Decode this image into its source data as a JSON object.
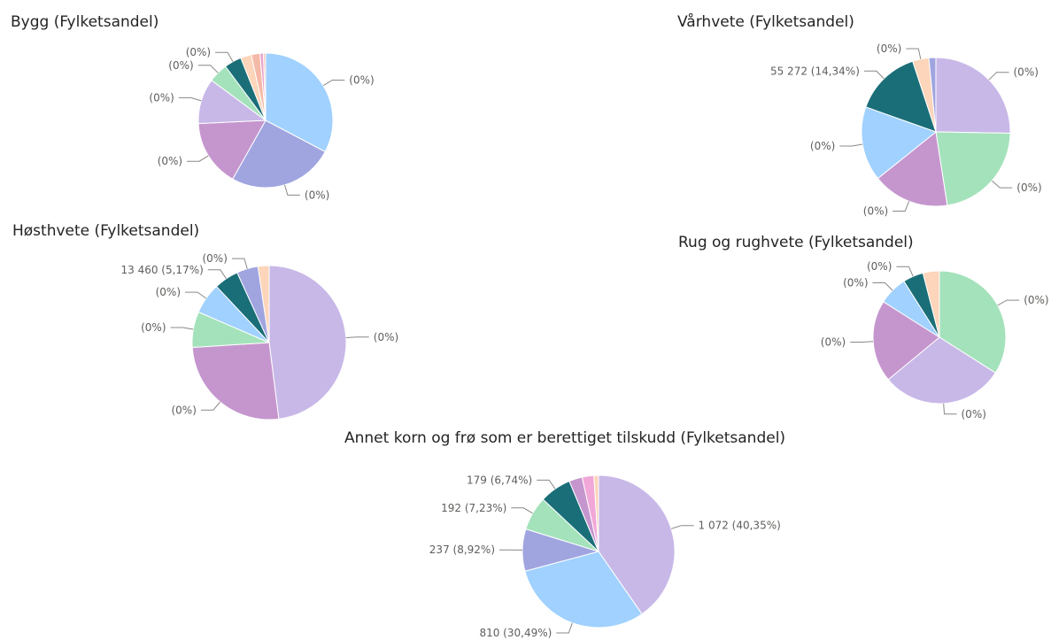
{
  "charts": [
    {
      "id": "bygg",
      "title": "Bygg (Fylketsandel)",
      "chart_data": {
        "type": "pie",
        "slices": [
          {
            "value": 31.5,
            "color": "#a0d1ff",
            "label": "(0%)"
          },
          {
            "value": 24.5,
            "color": "#a0a5e0",
            "label": "(0%)"
          },
          {
            "value": 15.5,
            "color": "#c596ce",
            "label": "(0%)"
          },
          {
            "value": 10.5,
            "color": "#c8b8e8",
            "label": "(0%)"
          },
          {
            "value": 4.5,
            "color": "#a4e2bb",
            "label": "(0%)"
          },
          {
            "value": 4.0,
            "color": "#1a6e78",
            "label": "(0%)"
          },
          {
            "value": 2.5,
            "color": "#fcd5ba",
            "label": ""
          },
          {
            "value": 2.0,
            "color": "#f5b9a8",
            "label": ""
          },
          {
            "value": 0.8,
            "color": "#e9a5cd",
            "label": ""
          },
          {
            "value": 0.5,
            "color": "#f3c6b5",
            "label": ""
          }
        ]
      }
    },
    {
      "id": "varhvete",
      "title": "Vårhvete (Fylketsandel)",
      "chart_data": {
        "type": "pie",
        "slices": [
          {
            "value": 25.0,
            "color": "#c8b8e8",
            "label": "(0%)"
          },
          {
            "value": 22.0,
            "color": "#a4e2bb",
            "label": "(0%)"
          },
          {
            "value": 16.5,
            "color": "#c596ce",
            "label": "(0%)"
          },
          {
            "value": 16.0,
            "color": "#a0d1ff",
            "label": "(0%)"
          },
          {
            "value": 14.34,
            "color": "#1a6e78",
            "label": "55 272 (14,34%)"
          },
          {
            "value": 3.5,
            "color": "#fcd5ba",
            "label": "(0%)"
          },
          {
            "value": 1.5,
            "color": "#a0a5e0",
            "label": ""
          }
        ]
      }
    },
    {
      "id": "hosthvete",
      "title": "Høsthvete (Fylketsandel)",
      "chart_data": {
        "type": "pie",
        "slices": [
          {
            "value": 48.0,
            "color": "#c8b8e8",
            "label": "(0%)"
          },
          {
            "value": 26.0,
            "color": "#c596ce",
            "label": "(0%)"
          },
          {
            "value": 7.5,
            "color": "#a4e2bb",
            "label": "(0%)"
          },
          {
            "value": 6.5,
            "color": "#a0d1ff",
            "label": "(0%)"
          },
          {
            "value": 5.17,
            "color": "#1a6e78",
            "label": "13 460 (5,17%)"
          },
          {
            "value": 4.5,
            "color": "#a0a5e0",
            "label": "(0%)"
          },
          {
            "value": 2.33,
            "color": "#fcd5ba",
            "label": ""
          }
        ]
      }
    },
    {
      "id": "rug",
      "title": "Rug og rughvete (Fylketsandel)",
      "chart_data": {
        "type": "pie",
        "slices": [
          {
            "value": 34.0,
            "color": "#a4e2bb",
            "label": "(0%)"
          },
          {
            "value": 30.0,
            "color": "#c8b8e8",
            "label": "(0%)"
          },
          {
            "value": 20.0,
            "color": "#c596ce",
            "label": "(0%)"
          },
          {
            "value": 7.0,
            "color": "#a0d1ff",
            "label": "(0%)"
          },
          {
            "value": 5.0,
            "color": "#1a6e78",
            "label": "(0%)"
          },
          {
            "value": 4.0,
            "color": "#fcd5ba",
            "label": ""
          }
        ]
      }
    },
    {
      "id": "annet",
      "title": "Annet korn og frø som er berettiget tilskudd (Fylketsandel)",
      "chart_data": {
        "type": "pie",
        "slices": [
          {
            "value": 40.35,
            "color": "#c8b8e8",
            "label": "1 072 (40,35%)"
          },
          {
            "value": 30.49,
            "color": "#a0d1ff",
            "label": "810 (30,49%)"
          },
          {
            "value": 8.92,
            "color": "#a0a5e0",
            "label": "237 (8,92%)"
          },
          {
            "value": 7.23,
            "color": "#a4e2bb",
            "label": "192 (7,23%)"
          },
          {
            "value": 6.74,
            "color": "#1a6e78",
            "label": "179 (6,74%)"
          },
          {
            "value": 2.8,
            "color": "#c596ce",
            "label": ""
          },
          {
            "value": 2.5,
            "color": "#f2a7d9",
            "label": ""
          },
          {
            "value": 0.97,
            "color": "#fcd5ba",
            "label": ""
          }
        ]
      }
    }
  ]
}
